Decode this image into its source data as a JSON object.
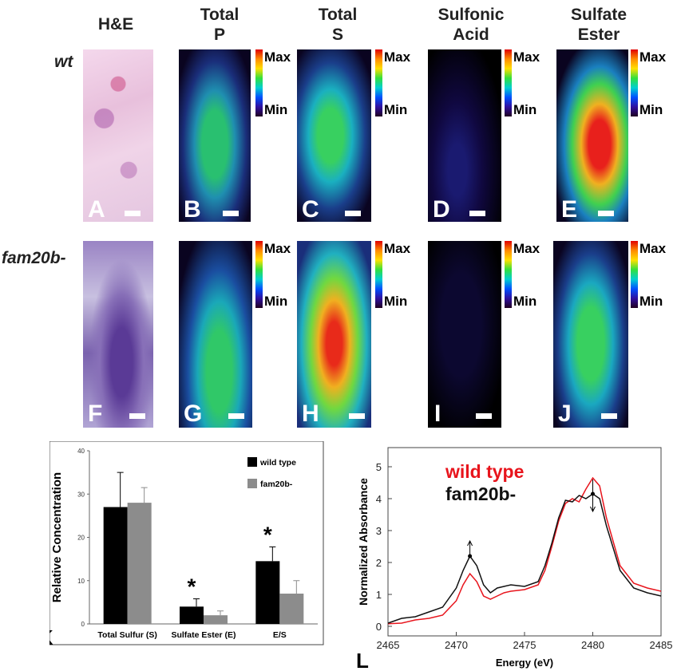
{
  "columns": [
    "H&E",
    "Total\nP",
    "Total\nS",
    "Sulfonic\nAcid",
    "Sulfate\nEster"
  ],
  "rows": [
    "wt",
    "fam20b-"
  ],
  "panel_letters": {
    "A": "A",
    "B": "B",
    "C": "C",
    "D": "D",
    "E": "E",
    "F": "F",
    "G": "G",
    "H": "H",
    "I": "I",
    "J": "J",
    "K": "K",
    "L": "L"
  },
  "colorbar": {
    "max_label": "Max",
    "min_label": "Min"
  },
  "chart_data": [
    {
      "type": "bar",
      "panel": "K",
      "categories": [
        "Total Sulfur (S)",
        "Sulfate Ester (E)",
        "E/S"
      ],
      "series": [
        {
          "name": "wild type",
          "color": "#000000",
          "values": [
            27,
            4,
            14.5
          ],
          "errors": [
            8,
            1.8,
            3.3
          ]
        },
        {
          "name": "fam20b-",
          "color": "#8c8c8c",
          "values": [
            28,
            2,
            7
          ],
          "errors": [
            3.5,
            1.0,
            3.0
          ]
        }
      ],
      "ylabel": "Relative Concentration",
      "ylim": [
        0,
        40
      ],
      "yticks": [
        0,
        10,
        20,
        30,
        40
      ],
      "significance": [
        {
          "category": "Sulfate Ester (E)",
          "mark": "*"
        },
        {
          "category": "E/S",
          "mark": "*"
        }
      ],
      "legend": "top-right"
    },
    {
      "type": "line",
      "panel": "L",
      "xlabel": "Energy (eV)",
      "ylabel": "Normalized Absorbance",
      "xlim": [
        2465,
        2485
      ],
      "ylim": [
        -0.3,
        5.6
      ],
      "xticks": [
        2465,
        2470,
        2475,
        2480,
        2485
      ],
      "yticks": [
        0,
        1,
        2,
        3,
        4,
        5
      ],
      "legend": "top-left",
      "series": [
        {
          "name": "wild type",
          "color": "#e8141c",
          "x": [
            2465,
            2466,
            2467,
            2468,
            2469,
            2470,
            2470.5,
            2471,
            2471.5,
            2472,
            2472.5,
            2473,
            2473.5,
            2474,
            2475,
            2476,
            2476.5,
            2477,
            2477.5,
            2478,
            2478.5,
            2479,
            2479.5,
            2480,
            2480.5,
            2481,
            2482,
            2483,
            2484,
            2485
          ],
          "y": [
            0.08,
            0.1,
            0.2,
            0.25,
            0.35,
            0.8,
            1.3,
            1.65,
            1.4,
            0.95,
            0.85,
            0.95,
            1.05,
            1.1,
            1.15,
            1.3,
            1.75,
            2.5,
            3.3,
            3.85,
            4.0,
            3.9,
            4.3,
            4.65,
            4.4,
            3.4,
            1.9,
            1.35,
            1.2,
            1.1
          ]
        },
        {
          "name": "fam20b-",
          "color": "#111111",
          "x": [
            2465,
            2466,
            2467,
            2468,
            2469,
            2470,
            2470.5,
            2471,
            2471.5,
            2472,
            2472.5,
            2473,
            2473.5,
            2474,
            2475,
            2476,
            2476.5,
            2477,
            2477.5,
            2478,
            2478.5,
            2479,
            2479.5,
            2480,
            2480.5,
            2481,
            2482,
            2483,
            2484,
            2485
          ],
          "y": [
            0.1,
            0.25,
            0.3,
            0.45,
            0.6,
            1.2,
            1.75,
            2.2,
            1.9,
            1.3,
            1.05,
            1.2,
            1.25,
            1.3,
            1.25,
            1.4,
            1.9,
            2.6,
            3.4,
            3.95,
            3.9,
            4.1,
            4.0,
            4.15,
            4.0,
            3.15,
            1.75,
            1.2,
            1.05,
            0.95
          ]
        }
      ],
      "annotations": [
        {
          "x": 2471,
          "y_from": 1.65,
          "y_to": 2.2,
          "type": "arrow-up"
        },
        {
          "x": 2480,
          "y_from": 4.65,
          "y_to": 4.15,
          "type": "double-arrow"
        }
      ]
    }
  ]
}
